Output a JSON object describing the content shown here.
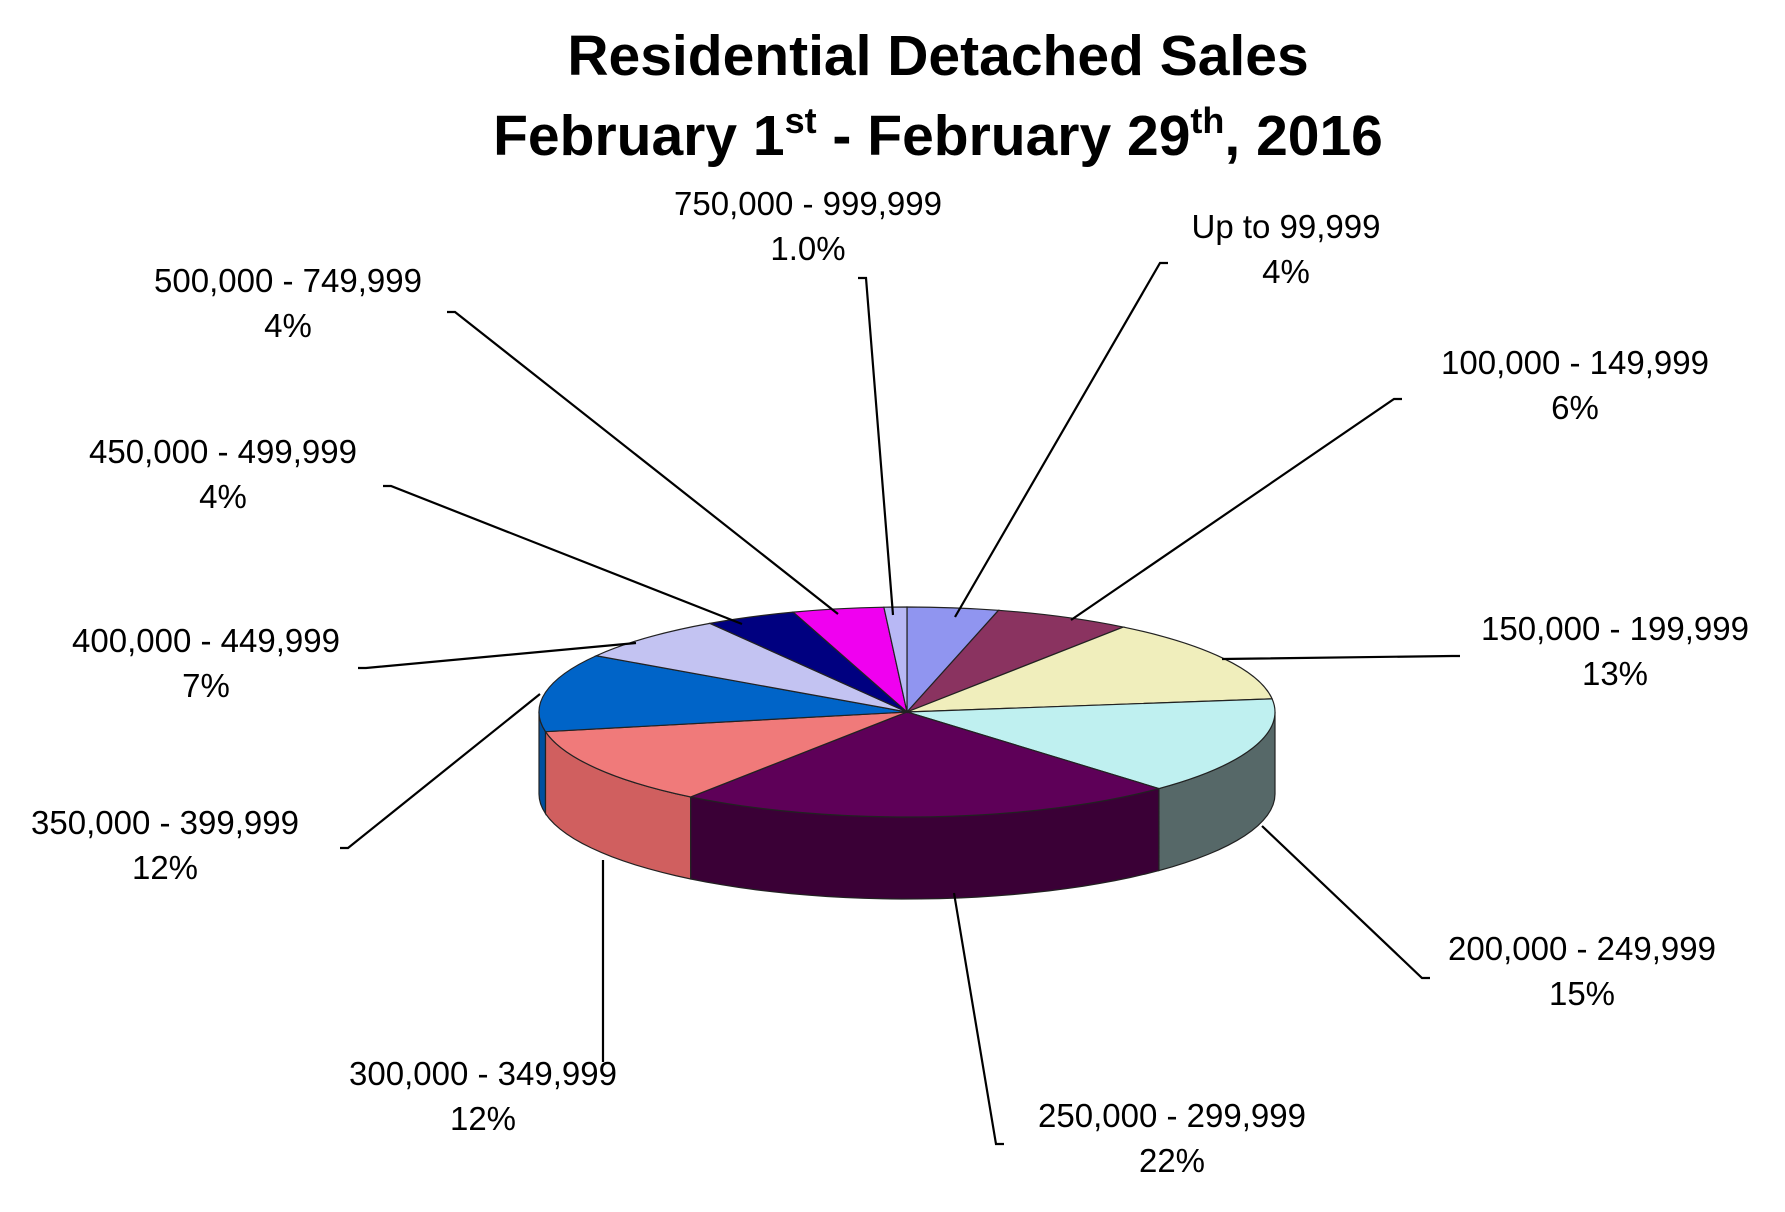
{
  "chart_data": {
    "type": "pie",
    "title": {
      "line1": "Residential Detached Sales",
      "line2_part1": "February 1",
      "line2_sup1": "st",
      "line2_part2": " - February 29",
      "line2_sup2": "th",
      "line2_part3": ", 2016"
    },
    "slices": [
      {
        "label": "Up to 99,999",
        "pct_label": "4%",
        "value": 4,
        "color": "#9095f0",
        "side_color": "#5a5eb0"
      },
      {
        "label": "100,000 - 149,999",
        "pct_label": "6%",
        "value": 6,
        "color": "#8a3360",
        "side_color": "#5a1e3e"
      },
      {
        "label": "150,000 - 199,999",
        "pct_label": "13%",
        "value": 13,
        "color": "#f0eebc",
        "side_color": "#a8a680"
      },
      {
        "label": "200,000 - 249,999",
        "pct_label": "15%",
        "value": 15,
        "color": "#bff0f0",
        "side_color": "#566868"
      },
      {
        "label": "250,000 - 299,999",
        "pct_label": "22%",
        "value": 22,
        "color": "#5e0058",
        "side_color": "#3a0036"
      },
      {
        "label": "300,000 - 349,999",
        "pct_label": "12%",
        "value": 12,
        "color": "#f07a7a",
        "side_color": "#d05f5f"
      },
      {
        "label": "350,000 - 399,999",
        "pct_label": "12%",
        "value": 12,
        "color": "#0064c8",
        "side_color": "#0050a0"
      },
      {
        "label": "400,000 - 449,999",
        "pct_label": "7%",
        "value": 7,
        "color": "#c3c3f2",
        "side_color": "#8f8fc0"
      },
      {
        "label": "450,000 - 499,999",
        "pct_label": "4%",
        "value": 4,
        "color": "#000080",
        "side_color": "#000050"
      },
      {
        "label": "500,000 - 749,999",
        "pct_label": "4%",
        "value": 4,
        "color": "#f000f0",
        "side_color": "#a000a0"
      },
      {
        "label": "750,000 - 999,999",
        "pct_label": "1.0%",
        "value": 1,
        "color": "#b8b8f5",
        "side_color": "#8080c0"
      }
    ]
  }
}
